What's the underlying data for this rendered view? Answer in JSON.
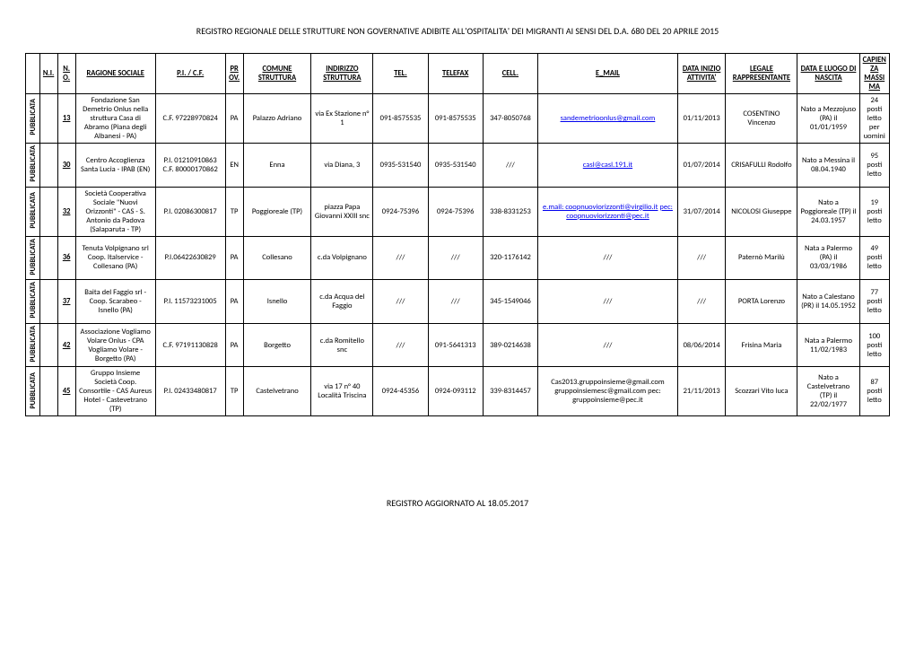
{
  "title": "REGISTRO REGIONALE DELLE STRUTTURE NON GOVERNATIVE ADIBITE ALL'OSPITALITA' DEI MIGRANTI AI SENSI DEL D.A. 680 DEL 20 APRILE 2015",
  "footer": "REGISTRO AGGIORNATO AL 18.05.2017",
  "headers": {
    "pub": "",
    "ni": "N.I.",
    "no": "N.O.",
    "ragione": "RAGIONE SOCIALE",
    "cf": "P.I. / C.F.",
    "prov": "PROV.",
    "comune": "COMUNE STRUTTURA",
    "indirizzo": "INDIRIZZO STRUTTURA",
    "tel": "TEL.",
    "fax": "TELEFAX",
    "cell": "CELL.",
    "mail": "E_MAIL",
    "data": "DATA INIZIO ATTIVITA'",
    "legale": "LEGALE RAPPRESENTANTE",
    "luogo": "DATA E LUOGO DI NASCITA",
    "cap": "CAPIENZA MASSIMA"
  },
  "rows": [
    {
      "pub": "PUBBLICATA",
      "no": "13",
      "ragione": "Fondazione San Demetrio Onlus nella struttura Casa di Abramo (Piana degli Albanesi - PA)",
      "cf": "C.F. 97228970824",
      "prov": "PA",
      "comune": "Palazzo Adriano",
      "indirizzo": "via Ex Stazione n° 1",
      "tel": "091-8575535",
      "fax": "091-8575535",
      "cell": "347-8050768",
      "mail_links": [
        "sandemetrioonlus@gmail.com"
      ],
      "data": "01/11/2013",
      "legale": "COSENTINO Vincenzo",
      "luogo": "Nato a Mezzojuso (PA) il 01/01/1959",
      "cap": "24 posti letto per uomini"
    },
    {
      "pub": "PUBBLICATA",
      "no": "30",
      "ragione": "Centro Accoglienza Santa Lucia - IPAB (EN)",
      "cf": "P.I. 01210910863 C.F. 80000170862",
      "prov": "EN",
      "comune": "Enna",
      "indirizzo": "via Diana, 3",
      "tel": "0935-531540",
      "fax": "0935-531540",
      "cell": "///",
      "mail_links": [
        "casl@casl.191.it"
      ],
      "data": "01/07/2014",
      "legale": "CRISAFULLI Rodolfo",
      "luogo": "Nato a Messina il 08.04.1940",
      "cap": "95 posti letto"
    },
    {
      "pub": "PUBBLICATA",
      "no": "32",
      "ragione": "Società Cooperativa Sociale \"Nuovi Orizzonti\" - CAS - S. Antonio da Padova (Salaparuta - TP)",
      "cf": "P.I. 02086300817",
      "prov": "TP",
      "comune": "Poggioreale (TP)",
      "indirizzo": "piazza Papa Giovanni XXIII snc",
      "tel": "0924-75396",
      "fax": "0924-75396",
      "cell": "338-8331253",
      "mail_links": [
        "e.mail: coopnuoviorizzonti@virgilio.it",
        "pec: coopnuoviorizzonti@pec.it"
      ],
      "data": "31/07/2014",
      "legale": "NICOLOSI Giuseppe",
      "luogo": "Nato a Poggioreale (TP) il 24.03.1957",
      "cap": "19 posti letto"
    },
    {
      "pub": "PUBBLICATA",
      "no": "36",
      "ragione": "Tenuta Volpignano srl Coop. Italservice - Collesano (PA)",
      "cf": "P.I.06422630829",
      "prov": "PA",
      "comune": "Collesano",
      "indirizzo": "c.da Volpignano",
      "tel": "///",
      "fax": "///",
      "cell": "320-1176142",
      "mail_plain": "///",
      "data": "///",
      "legale": "Paternò Marilù",
      "luogo": "Nata a Palermo (PA) il 03/03/1986",
      "cap": "49 posti letto"
    },
    {
      "pub": "PUBBLICATA",
      "no": "37",
      "ragione": "Baita del Faggio srl - Coop. Scarabeo - Isnello (PA)",
      "cf": "P.I. 11573231005",
      "prov": "PA",
      "comune": "Isnello",
      "indirizzo": "c.da Acqua del Faggio",
      "tel": "///",
      "fax": "///",
      "cell": "345-1549046",
      "mail_plain": "///",
      "data": "///",
      "legale": "PORTA Lorenzo",
      "luogo": "Nato a Calestano (PR) il 14.05.1952",
      "cap": "77 posti letto"
    },
    {
      "pub": "PUBBLICATA",
      "no": "42",
      "ragione": "Associazione Vogliamo Volare Onlus - CPA Vogliamo Volare - Borgetto (PA)",
      "cf": "C.F. 97191130828",
      "prov": "PA",
      "comune": "Borgetto",
      "indirizzo": "c.da Romitello snc",
      "tel": "///",
      "fax": "091-5641313",
      "cell": "389-0214638",
      "mail_plain": "///",
      "data": "08/06/2014",
      "legale": "Frisina Maria",
      "luogo": "Nata a Palermo 11/02/1983",
      "cap": "100 posti letto"
    },
    {
      "pub": "PUBBLICATA",
      "no": "45",
      "ragione": "Gruppo Insieme Società Coop. Consortile - CAS Aureus Hotel - Castevetrano (TP)",
      "cf": "P.I. 02433480817",
      "prov": "TP",
      "comune": "Castelvetrano",
      "indirizzo": "via 17 n° 40 Località Triscina",
      "tel": "0924-45356",
      "fax": "0924-093112",
      "cell": "339-8314457",
      "mail_plain": "Cas2013.gruppoinsieme@gmail.com gruppoinsiemesc@gmail.com pec: gruppoinsieme@pec.it",
      "data": "21/11/2013",
      "legale": "Scozzari Vito luca",
      "luogo": "Nato a Castelvetrano (TP) il 22/02/1977",
      "cap": "87 posti letto"
    }
  ]
}
